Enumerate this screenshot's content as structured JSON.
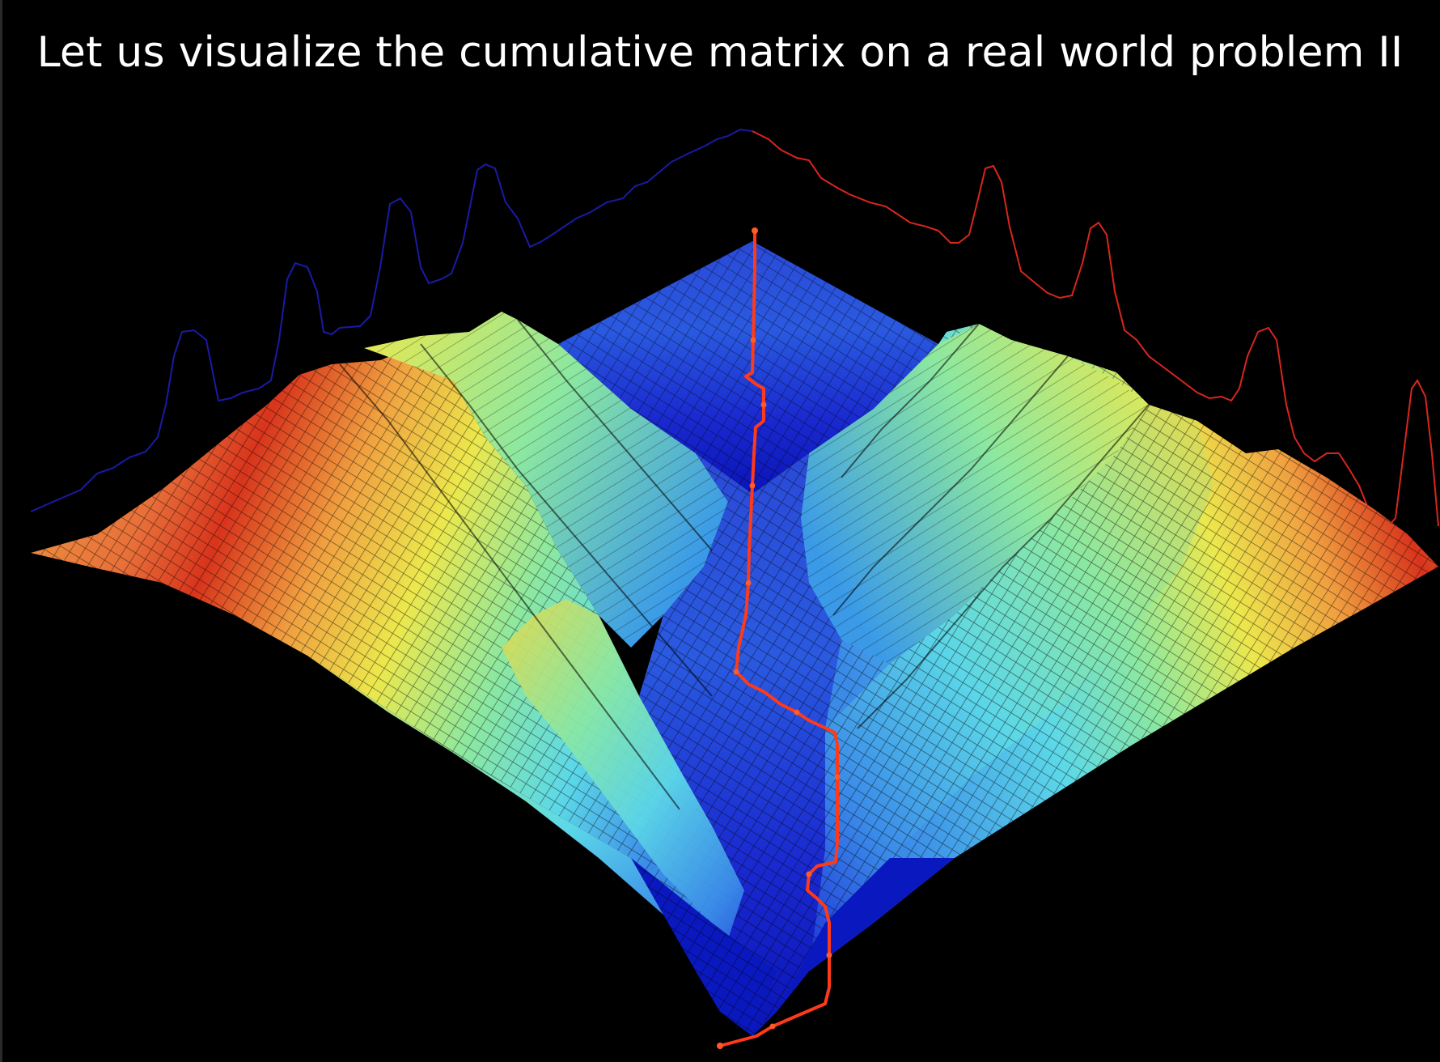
{
  "slide": {
    "title": "Let us visualize the cumulative matrix on a real world problem II"
  },
  "figure": {
    "colors": {
      "background": "#000000",
      "query_series": "#1a1aa6",
      "reference_series": "#d8261c",
      "warping_path": "#ff3a1a",
      "surface_high": "#d83a1c",
      "surface_mid": "#e8e84a",
      "surface_low_mid": "#5ce8e8",
      "surface_low": "#1a2ad8",
      "mesh_lines": "#000000"
    }
  }
}
